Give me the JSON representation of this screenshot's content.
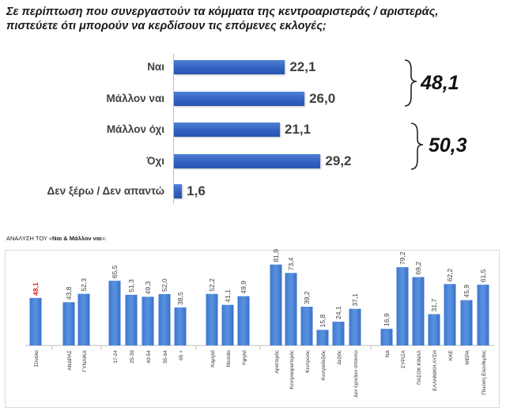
{
  "title_line1": "Σε περίπτωση που συνεργαστούν τα κόμματα της κεντροαριστεράς / αριστεράς,",
  "title_line2": "πιστεύετε ότι μπορούν να κερδίσουν τις επόμενες εκλογές;",
  "sum_yes": "48,1",
  "sum_no": "50,3",
  "subtitle_prefix": "ΑΝΑΛΥΣΗ ΤΟΥ «",
  "subtitle_bold": "Ναι & Μάλλον ναι",
  "subtitle_suffix": "»:",
  "colors": {
    "bar_top": "#2f5fc0",
    "bar_bottom": "#4a86d6",
    "highlight_value": "#e02020",
    "value_text": "#404040"
  },
  "chart_data": [
    {
      "type": "bar",
      "orientation": "horizontal",
      "categories": [
        "Ναι",
        "Μάλλον ναι",
        "Μάλλον όχι",
        "Όχι",
        "Δεν ξέρω / Δεν απαντώ"
      ],
      "values": [
        22.1,
        26.0,
        21.1,
        29.2,
        1.6
      ],
      "labels": [
        "22,1",
        "26,0",
        "21,1",
        "29,2",
        "1,6"
      ],
      "xlim": [
        0,
        30
      ],
      "grid": false
    },
    {
      "type": "bar",
      "orientation": "vertical",
      "groups": [
        {
          "categories": [
            "Σύνολο"
          ],
          "values": [
            48.1
          ],
          "labels": [
            "48,1"
          ]
        },
        {
          "categories": [
            "ΑΝΔΡΑΣ",
            "ΓΥΝΑΙΚΑ"
          ],
          "values": [
            43.8,
            52.3
          ],
          "labels": [
            "43,8",
            "52,3"
          ]
        },
        {
          "categories": [
            "17-24",
            "25-39",
            "40-54",
            "55-64",
            "65 +"
          ],
          "values": [
            65.5,
            51.3,
            49.3,
            52.0,
            38.5
          ],
          "labels": [
            "65,5",
            "51,3",
            "49,3",
            "52,0",
            "38,5"
          ]
        },
        {
          "categories": [
            "Χαμηλό",
            "Μεσαίο",
            "Υψηλό"
          ],
          "values": [
            52.2,
            41.1,
            49.9
          ],
          "labels": [
            "52,2",
            "41,1",
            "49,9"
          ]
        },
        {
          "categories": [
            "Αριστερός",
            "Κεντροαριστερός",
            "Κεντρώος",
            "Κεντροδεξιός",
            "Δεξιός",
            "Δεν έχει/Δεν απαντώ"
          ],
          "values": [
            81.9,
            73.4,
            39.2,
            15.8,
            24.1,
            37.1
          ],
          "labels": [
            "81,9",
            "73,4",
            "39,2",
            "15,8",
            "24,1",
            "37,1"
          ]
        },
        {
          "categories": [
            "ΝΔ",
            "ΣΥΡΙΖΑ",
            "ΠΑΣΟΚ ΚΙΝΑΛ",
            "ΕΛΛΗΝΙΚΗ ΛΥΣΗ",
            "ΚΚΕ",
            "ΜΕΡΑ",
            "Πλεύση Ελευθερίας"
          ],
          "values": [
            16.9,
            79.2,
            69.2,
            31.7,
            62.2,
            45.9,
            61.5
          ],
          "labels": [
            "16,9",
            "79,2",
            "69,2",
            "31,7",
            "62,2",
            "45,9",
            "61,5"
          ]
        }
      ],
      "highlight_category": "Σύνολο",
      "grid": false
    }
  ]
}
